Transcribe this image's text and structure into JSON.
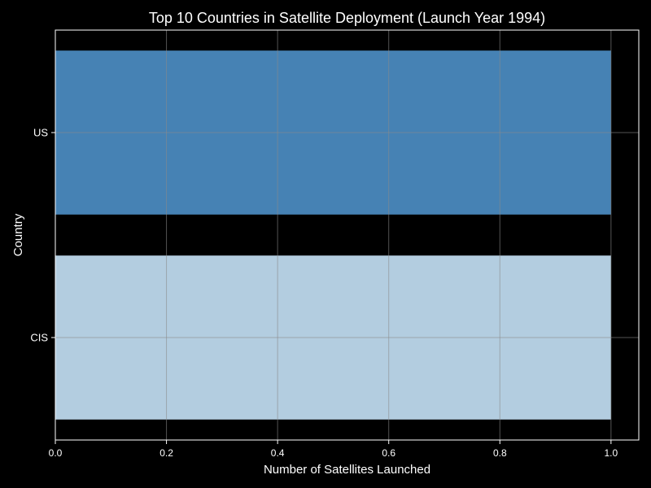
{
  "chart_data": {
    "type": "bar",
    "orientation": "horizontal",
    "title": "Top 10 Countries in Satellite Deployment (Launch Year 1994)",
    "xlabel": "Number of Satellites Launched",
    "ylabel": "Country",
    "categories": [
      "US",
      "CIS"
    ],
    "values": [
      1,
      1
    ],
    "bar_colors": [
      "#4682b4",
      "#b3cde0"
    ],
    "xlim": [
      0,
      1.05
    ],
    "xticks": [
      "0.0",
      "0.2",
      "0.4",
      "0.6",
      "0.8",
      "1.0"
    ],
    "grid": true
  },
  "colors": {
    "background": "#000000",
    "axes": "#ffffff",
    "grid": "#8a8a8a"
  }
}
